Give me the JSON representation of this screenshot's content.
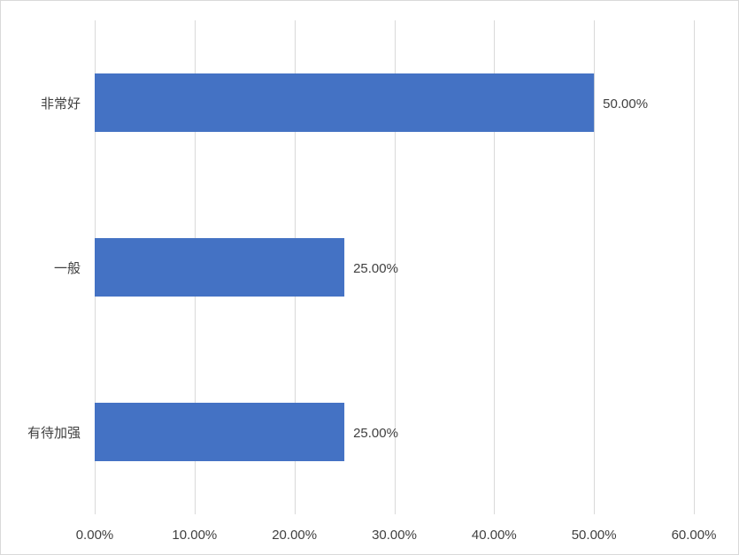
{
  "chart_data": {
    "type": "bar",
    "orientation": "horizontal",
    "title": "",
    "xlabel": "",
    "ylabel": "",
    "categories": [
      "非常好",
      "一般",
      "有待加强"
    ],
    "values": [
      50.0,
      25.0,
      25.0
    ],
    "data_labels": [
      "50.00%",
      "25.00%",
      "25.00%"
    ],
    "xlim": [
      0,
      60
    ],
    "x_ticks": [
      0,
      10,
      20,
      30,
      40,
      50,
      60
    ],
    "x_tick_labels": [
      "0.00%",
      "10.00%",
      "20.00%",
      "30.00%",
      "40.00%",
      "50.00%",
      "60.00%"
    ],
    "grid": "vertical",
    "legend": "none",
    "colors": {
      "bar": "#4472c4",
      "grid": "#d9d9d9",
      "text": "#404040",
      "border": "#d9d9d9"
    }
  }
}
